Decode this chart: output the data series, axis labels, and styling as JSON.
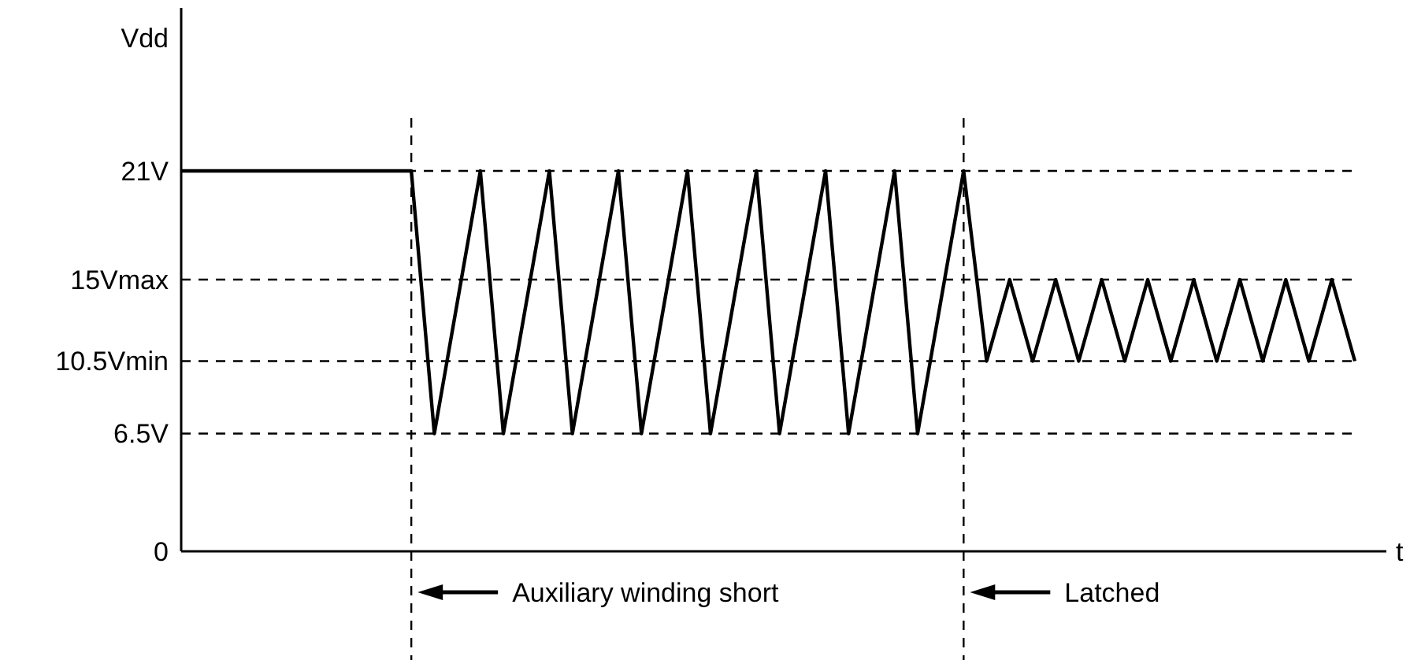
{
  "chart_data": {
    "type": "line",
    "ylabel": "Vdd",
    "xlabel": "t",
    "ylim": [
      0,
      30
    ],
    "categories": [
      null,
      null,
      null,
      null,
      null,
      null,
      null,
      null,
      null,
      null,
      null,
      null,
      null,
      null,
      null,
      null,
      null,
      null,
      null,
      null,
      null,
      null,
      null,
      null,
      null,
      null,
      null,
      null,
      null,
      null,
      null,
      null,
      null,
      null,
      null,
      null,
      null,
      null,
      null,
      null,
      null,
      null,
      null,
      null,
      null,
      null,
      null,
      null,
      null,
      null,
      null,
      null
    ],
    "yticks": [
      {
        "value": 0,
        "label": "0"
      },
      {
        "value": 6.5,
        "label": "6.5V"
      },
      {
        "value": 10.5,
        "label": "10.5Vmin"
      },
      {
        "value": 15,
        "label": "15Vmax"
      },
      {
        "value": 21,
        "label": "21V"
      }
    ],
    "tick_labels": "y",
    "grid": false,
    "marker": "none",
    "line_style": "solid",
    "series": [
      {
        "color": "#000000",
        "values": [
          21,
          21,
          21,
          21,
          21,
          21,
          21,
          21,
          21,
          21,
          21,
          6.5,
          13.75,
          21,
          6.5,
          13.75,
          21,
          6.5,
          13.75,
          21,
          6.5,
          13.75,
          21,
          6.5,
          13.75,
          21,
          6.5,
          13.75,
          21,
          6.5,
          13.75,
          21,
          6.5,
          13.75,
          21,
          10.5,
          15,
          10.5,
          15,
          10.5,
          15,
          10.5,
          15,
          10.5,
          15,
          10.5,
          15,
          10.5,
          15,
          10.5,
          15,
          10.5
        ]
      }
    ],
    "ref_lines": [
      {
        "axis": "y",
        "value": 21,
        "line_style": "dashed"
      },
      {
        "axis": "y",
        "value": 15,
        "line_style": "dashed"
      },
      {
        "axis": "y",
        "value": 10.5,
        "line_style": "dashed"
      },
      {
        "axis": "y",
        "value": 6.5,
        "line_style": "dashed"
      }
    ],
    "annotations": [
      "Auxiliary winding short",
      "Latched"
    ]
  }
}
